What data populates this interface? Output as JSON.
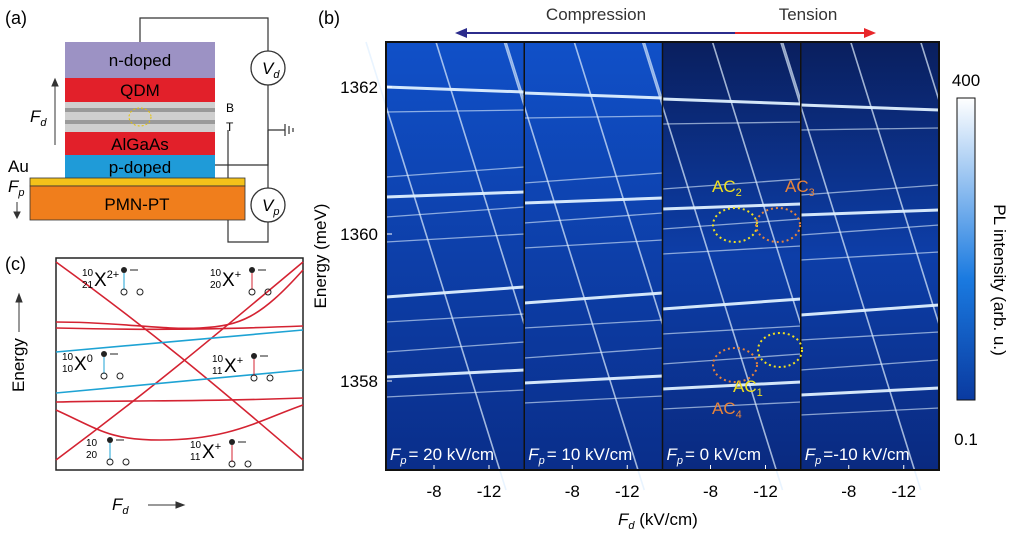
{
  "panel_a": {
    "label": "(a)",
    "layers": [
      "n-doped",
      "QDM",
      "AlGaAs",
      "p-doped",
      "PMN-PT"
    ],
    "barrier_labels": [
      "B",
      "T"
    ],
    "contact": "Au",
    "field_d": {
      "symbol": "F",
      "sub": "d"
    },
    "field_p": {
      "symbol": "F",
      "sub": "p"
    },
    "voltage_d": {
      "symbol": "V",
      "sub": "d"
    },
    "voltage_p": {
      "symbol": "V",
      "sub": "p"
    }
  },
  "panel_b": {
    "label": "(b)",
    "arrow_left": "Compression",
    "arrow_right": "Tension",
    "y_axis": {
      "title": "Energy (meV)",
      "ticks": [
        "1362",
        "1360",
        "1358"
      ]
    },
    "x_axis": {
      "symbol": "F",
      "sub": "d",
      "unit": " (kV/cm)"
    },
    "panels": [
      {
        "symbol": "F",
        "sub": "p",
        "text": "= 20 kV/cm",
        "x_ticks": [
          "-8",
          "-12"
        ]
      },
      {
        "symbol": "F",
        "sub": "p",
        "text": "= 10 kV/cm",
        "x_ticks": [
          "-8",
          "-12"
        ]
      },
      {
        "symbol": "F",
        "sub": "p",
        "text": "= 0 kV/cm",
        "x_ticks": [
          "-8",
          "-12"
        ]
      },
      {
        "symbol": "F",
        "sub": "p",
        "text": "=-10 kV/cm",
        "x_ticks": [
          "-8",
          "-12"
        ]
      }
    ],
    "colorbar": {
      "max": "400",
      "min": "0.1",
      "title": "PL intensity (arb. u.)"
    },
    "anticrossings": [
      {
        "main": "AC",
        "sub": "2"
      },
      {
        "main": "AC",
        "sub": "3"
      },
      {
        "main": "AC",
        "sub": "1"
      },
      {
        "main": "AC",
        "sub": "4"
      }
    ]
  },
  "panel_c": {
    "label": "(c)",
    "y_title": "Energy",
    "x_axis": {
      "symbol": "F",
      "sub": "d"
    },
    "states": [
      {
        "top": "10",
        "bottom": "21",
        "symbol": "X",
        "charge": "2+"
      },
      {
        "top": "10",
        "bottom": "20",
        "symbol": "X",
        "charge": "+"
      },
      {
        "top": "10",
        "bottom": "10",
        "symbol": "X",
        "charge": "0"
      },
      {
        "top": "10",
        "bottom": "11",
        "symbol": "X",
        "charge": "+"
      },
      {
        "top": "10",
        "bottom": "20"
      },
      {
        "top": "10",
        "bottom": "11",
        "symbol": "X",
        "charge": "+"
      }
    ]
  }
}
